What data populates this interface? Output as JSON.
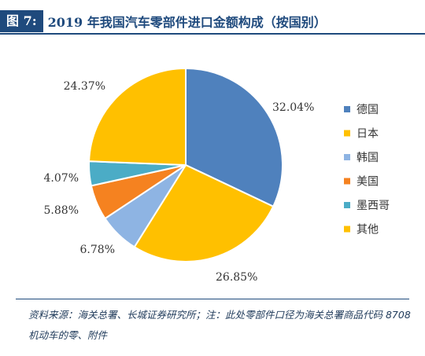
{
  "header": {
    "figure_tag": "图 7:",
    "title": "2019 年我国汽车零部件进口金额构成（按国别）"
  },
  "chart_data": {
    "type": "pie",
    "title": "2019 年我国汽车零部件进口金额构成（按国别）",
    "categories": [
      "德国",
      "日本",
      "韩国",
      "美国",
      "墨西哥",
      "其他"
    ],
    "values": [
      32.04,
      26.85,
      6.78,
      5.88,
      4.07,
      24.37
    ],
    "value_labels": [
      "32.04%",
      "26.85%",
      "6.78%",
      "5.88%",
      "4.07%",
      "24.37%"
    ],
    "colors": [
      "#4f81bd",
      "#ffc000",
      "#8eb4e3",
      "#f58220",
      "#4bacc6",
      "#ffc000"
    ],
    "start_angle": "12 o'clock",
    "direction": "clockwise",
    "legend_placement": "right"
  },
  "footer": {
    "source": "资料来源：海关总署、长城证券研究所；注：此处零部件口径为海关总署商品代码 8708 机动车的零、附件"
  }
}
